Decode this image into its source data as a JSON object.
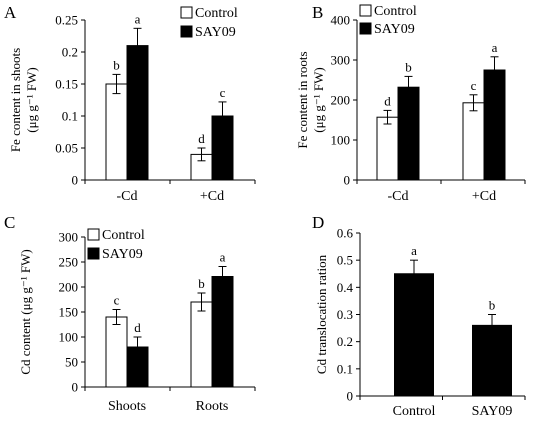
{
  "chart_data": [
    {
      "panel": "A",
      "type": "bar",
      "ylabel": "Fe content in shoots (μg g⁻¹ FW)",
      "ylabel_lines": [
        "Fe content in shoots",
        "(μg g⁻¹ FW)"
      ],
      "ylim": [
        0,
        0.25
      ],
      "yticks": [
        "0",
        "0.05",
        "0.1",
        "0.15",
        "0.2",
        "0.25"
      ],
      "categories": [
        "-Cd",
        "+Cd"
      ],
      "legend": [
        "Control",
        "SAY09"
      ],
      "series": [
        {
          "name": "Control",
          "color": "#ffffff",
          "values": [
            0.15,
            0.04
          ],
          "errors": [
            0.015,
            0.01
          ],
          "letters": [
            "b",
            "d"
          ]
        },
        {
          "name": "SAY09",
          "color": "#000000",
          "values": [
            0.21,
            0.1
          ],
          "errors": [
            0.027,
            0.022
          ],
          "letters": [
            "a",
            "c"
          ]
        }
      ]
    },
    {
      "panel": "B",
      "type": "bar",
      "ylabel": "Fe content in roots (μg g⁻¹ FW)",
      "ylabel_lines": [
        "Fe content in roots",
        "(μg g⁻¹ FW)"
      ],
      "ylim": [
        0,
        400
      ],
      "yticks": [
        "0",
        "100",
        "200",
        "300",
        "400"
      ],
      "categories": [
        "-Cd",
        "+Cd"
      ],
      "legend": [
        "Control",
        "SAY09"
      ],
      "series": [
        {
          "name": "Control",
          "color": "#ffffff",
          "values": [
            157,
            193
          ],
          "errors": [
            17,
            20
          ],
          "letters": [
            "d",
            "c"
          ]
        },
        {
          "name": "SAY09",
          "color": "#000000",
          "values": [
            232,
            275
          ],
          "errors": [
            27,
            33
          ],
          "letters": [
            "b",
            "a"
          ]
        }
      ]
    },
    {
      "panel": "C",
      "type": "bar",
      "ylabel": "Cd content (μg g⁻¹ FW)",
      "ylabel_lines": [
        "Cd content (μg g⁻¹ FW)"
      ],
      "ylim": [
        0,
        300
      ],
      "yticks": [
        "0",
        "50",
        "100",
        "150",
        "200",
        "250",
        "300"
      ],
      "categories": [
        "Shoots",
        "Roots"
      ],
      "legend": [
        "Control",
        "SAY09"
      ],
      "series": [
        {
          "name": "Control",
          "color": "#ffffff",
          "values": [
            140,
            170
          ],
          "errors": [
            15,
            18
          ],
          "letters": [
            "c",
            "b"
          ]
        },
        {
          "name": "SAY09",
          "color": "#000000",
          "values": [
            80,
            221
          ],
          "errors": [
            20,
            20
          ],
          "letters": [
            "d",
            "a"
          ]
        }
      ]
    },
    {
      "panel": "D",
      "type": "bar",
      "ylabel": "Cd translocation ration",
      "ylabel_lines": [
        "Cd translocation ration"
      ],
      "ylim": [
        0,
        0.6
      ],
      "yticks": [
        "0",
        "0.1",
        "0.2",
        "0.3",
        "0.4",
        "0.5",
        "0.6"
      ],
      "categories": [
        "Control",
        "SAY09"
      ],
      "legend": [],
      "series": [
        {
          "name": "",
          "color": "#000000",
          "values": [
            0.45,
            0.26
          ],
          "errors": [
            0.05,
            0.04
          ],
          "letters": [
            "a",
            "b"
          ]
        }
      ]
    }
  ]
}
